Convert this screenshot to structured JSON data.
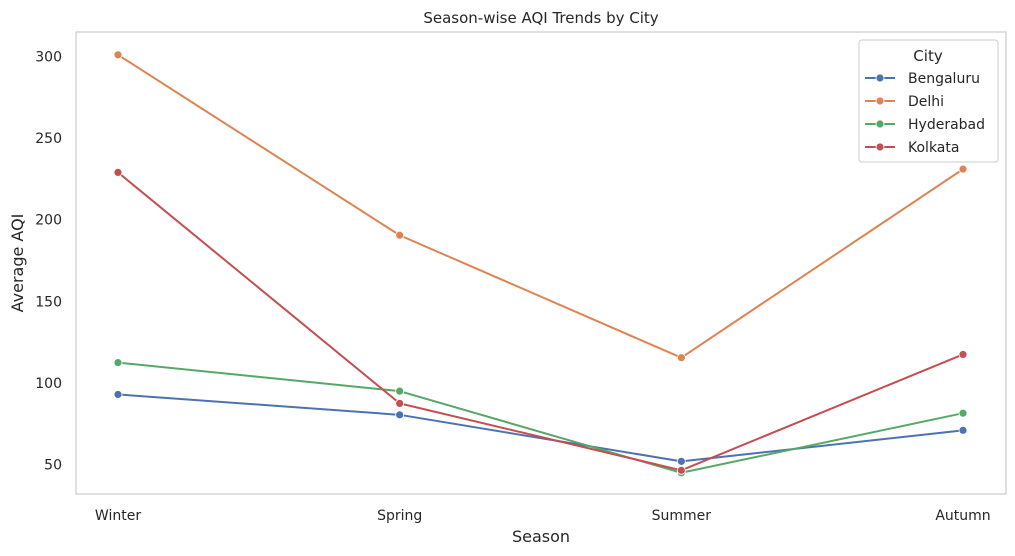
{
  "chart_data": {
    "type": "line",
    "title": "Season-wise AQI Trends by City",
    "xlabel": "Season",
    "ylabel": "Average AQI",
    "categories": [
      "Winter",
      "Spring",
      "Summer",
      "Autumn"
    ],
    "ylim": [
      32,
      315
    ],
    "yticks": [
      50,
      100,
      150,
      200,
      250,
      300
    ],
    "grid": false,
    "legend": {
      "title": "City",
      "position": "top-right"
    },
    "series": [
      {
        "name": "Bengaluru",
        "color": "#4c72b0",
        "values": [
          93,
          80.5,
          52,
          71
        ]
      },
      {
        "name": "Delhi",
        "color": "#dd8452",
        "values": [
          301,
          190.5,
          115.5,
          231
        ]
      },
      {
        "name": "Hyderabad",
        "color": "#55a868",
        "values": [
          112.5,
          95,
          45,
          81.5
        ]
      },
      {
        "name": "Kolkata",
        "color": "#c44e52",
        "values": [
          229,
          87.5,
          46.5,
          117.5
        ]
      }
    ]
  }
}
